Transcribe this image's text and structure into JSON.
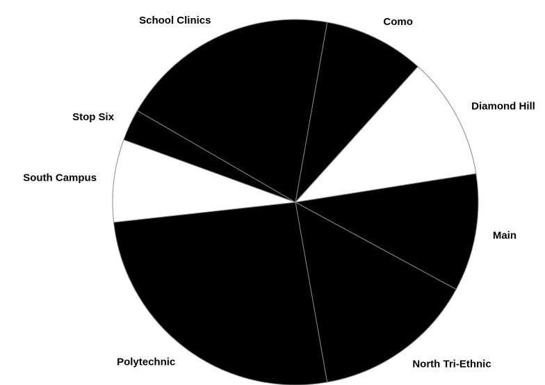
{
  "chart_data": {
    "type": "pie",
    "categories": [
      "Como",
      "Diamond Hill",
      "Main",
      "North Tri-Ethnic",
      "Polytechnic",
      "South Campus",
      "Stop Six",
      "School Clinics"
    ],
    "values": [
      8.9,
      10.8,
      10.4,
      14.3,
      26.0,
      7.3,
      2.8,
      19.4
    ],
    "colors": [
      "#000000",
      "#ffffff",
      "#000000",
      "#000000",
      "#000000",
      "#ffffff",
      "#000000",
      "#000000"
    ],
    "start_angle": 80,
    "direction": "clockwise"
  }
}
